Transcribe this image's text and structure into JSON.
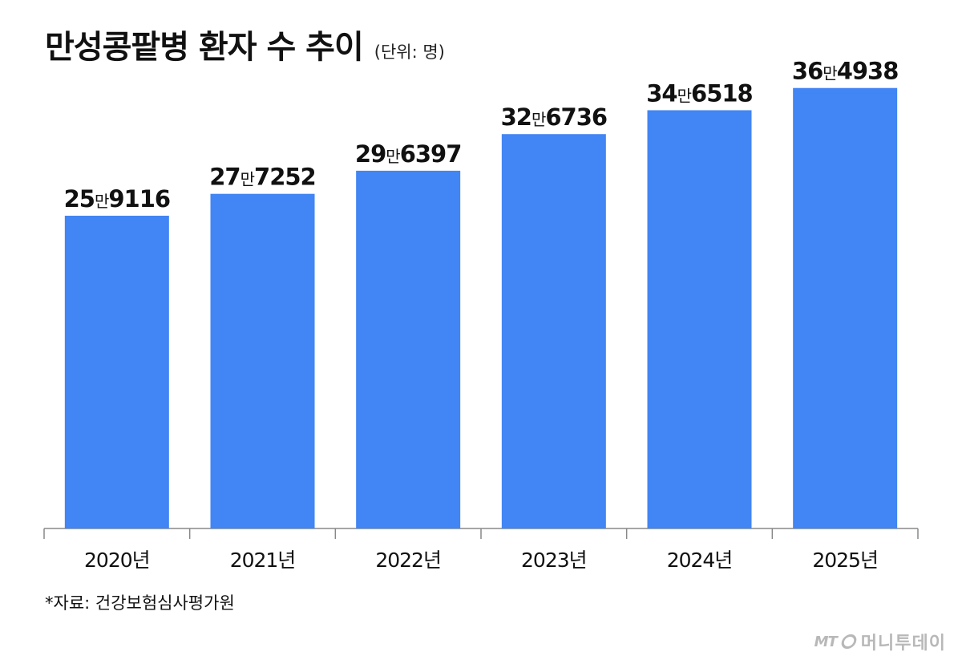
{
  "header": {
    "title": "만성콩팥병 환자 수 추이",
    "unit": "(단위: 명)"
  },
  "footer": {
    "source": "*자료: 건강보험심사평가원",
    "logo_mt": "MT",
    "logo_name": "머니투데이"
  },
  "chart_data": {
    "type": "bar",
    "categories": [
      "2020년",
      "2021년",
      "2022년",
      "2023년",
      "2024년",
      "2025년"
    ],
    "values": [
      259116,
      277252,
      296397,
      326736,
      346518,
      364938
    ],
    "data_labels": [
      {
        "main": "25",
        "unit": "만",
        "rest": "9116"
      },
      {
        "main": "27",
        "unit": "만",
        "rest": "7252"
      },
      {
        "main": "29",
        "unit": "만",
        "rest": "6397"
      },
      {
        "main": "32",
        "unit": "만",
        "rest": "6736"
      },
      {
        "main": "34",
        "unit": "만",
        "rest": "6518"
      },
      {
        "main": "36",
        "unit": "만",
        "rest": "4938"
      }
    ],
    "bar_color": "#4285f4",
    "axis_color": "#888888",
    "grid": false,
    "legend": "none"
  }
}
